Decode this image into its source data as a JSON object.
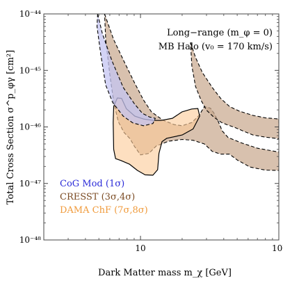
{
  "chart_data": {
    "type": "area",
    "xlabel": "Dark Matter mass   m_χ  [GeV]",
    "ylabel": "Total Cross Section   σ^p_φγ [cm²]",
    "x_scale": "log",
    "y_scale": "log",
    "xlim": [
      2,
      100
    ],
    "ylim": [
      1e-48,
      1e-44
    ],
    "x_ticks": [
      {
        "value": 10,
        "label": "10"
      },
      {
        "value": 100,
        "label": "10²"
      }
    ],
    "y_ticks": [
      {
        "value": 1e-48,
        "label": "10⁻⁴⁸"
      },
      {
        "value": 1e-47,
        "label": "10⁻⁴⁷"
      },
      {
        "value": 1e-46,
        "label": "10⁻⁴⁶"
      },
      {
        "value": 1e-45,
        "label": "10⁻⁴⁵"
      },
      {
        "value": 1e-44,
        "label": "10⁻⁴⁴"
      }
    ],
    "annotations": [
      "Long−range (m_φ = 0)",
      "MB Halo (v₀ = 170 km/s)"
    ],
    "legend_placement": "bottom-left",
    "series": [
      {
        "name": "CoG Mod  (1σ)",
        "color": "#5a5ad8",
        "fill": "#c4c4f2",
        "outline": "dashed",
        "regions": [
          [
            [
              4.9,
              1e-44
            ],
            [
              5.3,
              4.5e-45
            ],
            [
              6.2,
              1.5e-45
            ],
            [
              7.5,
              5e-46
            ],
            [
              9.0,
              2.6e-46
            ],
            [
              10.3,
              1.75e-46
            ],
            [
              11.6,
              1.5e-46
            ],
            [
              12.8,
              1.42e-46
            ],
            [
              12.3,
              1.15e-46
            ],
            [
              10.5,
              1.05e-46
            ],
            [
              8.8,
              1.18e-46
            ],
            [
              7.5,
              1.55e-46
            ],
            [
              6.3,
              2.7e-46
            ],
            [
              5.6,
              5.5e-46
            ],
            [
              5.15,
              2e-45
            ],
            [
              4.85,
              6e-45
            ]
          ]
        ]
      },
      {
        "name": "CRESST  (3σ,4σ)",
        "color": "#6e4a2a",
        "fill": "#c9a98f",
        "outline": "dashed",
        "regions": [
          [
            [
              5.5,
              1e-44
            ],
            [
              6.4,
              3.5e-45
            ],
            [
              7.6,
              1.45e-45
            ],
            [
              9.0,
              6.2e-46
            ],
            [
              10.5,
              3e-46
            ],
            [
              12.0,
              1.85e-46
            ],
            [
              14.5,
              1.32e-46
            ],
            [
              17.5,
              1.1e-46
            ],
            [
              20.0,
              1.05e-46
            ],
            [
              23.5,
              1.2e-46
            ],
            [
              26.5,
              1.6e-46
            ],
            [
              29.0,
              2.3e-46
            ],
            [
              32.0,
              2.15e-46
            ],
            [
              34.0,
              1.75e-46
            ],
            [
              36.5,
              1.25e-46
            ],
            [
              39.0,
              8.5e-47
            ],
            [
              43.0,
              6.5e-47
            ],
            [
              54.0,
              5.2e-47
            ],
            [
              70.0,
              4.2e-47
            ],
            [
              100.0,
              3.6e-47
            ],
            [
              100.0,
              1.7e-47
            ],
            [
              80.0,
              1.72e-47
            ],
            [
              62.0,
              1.95e-47
            ],
            [
              50.0,
              2.6e-47
            ],
            [
              44.0,
              3.3e-47
            ],
            [
              38.0,
              3.3e-47
            ],
            [
              33.0,
              3.7e-47
            ],
            [
              29.0,
              5e-47
            ],
            [
              24.0,
              5.8e-47
            ],
            [
              20.0,
              6e-47
            ],
            [
              16.0,
              5.6e-47
            ],
            [
              13.0,
              4.6e-47
            ],
            [
              11.5,
              3.4e-47
            ],
            [
              10.0,
              3.2e-47
            ],
            [
              9.0,
              4.6e-47
            ],
            [
              8.4,
              6.2e-47
            ],
            [
              7.6,
              8e-47
            ],
            [
              6.9,
              1.25e-46
            ],
            [
              6.4,
              2.8e-46
            ],
            [
              6.0,
              8.5e-46
            ],
            [
              5.6,
              3.5e-45
            ]
          ],
          [
            [
              23.0,
              3.1e-45
            ],
            [
              25.0,
              1.7e-45
            ],
            [
              28.0,
              9.2e-46
            ],
            [
              33.0,
              5e-46
            ],
            [
              38.0,
              3.2e-46
            ],
            [
              44.0,
              2.3e-46
            ],
            [
              52.0,
              1.9e-46
            ],
            [
              65.0,
              1.6e-46
            ],
            [
              80.0,
              1.45e-46
            ],
            [
              100.0,
              1.38e-46
            ],
            [
              100.0,
              6.2e-47
            ],
            [
              80.0,
              6.6e-47
            ],
            [
              65.0,
              7.2e-47
            ],
            [
              55.0,
              8.5e-47
            ],
            [
              48.0,
              9.8e-47
            ],
            [
              42.0,
              1.1e-46
            ],
            [
              38.5,
              1.2e-46
            ],
            [
              34.0,
              1.48e-46
            ],
            [
              30.0,
              1.98e-46
            ],
            [
              27.5,
              2.9e-46
            ],
            [
              25.0,
              5.2e-46
            ],
            [
              23.5,
              1.2e-45
            ]
          ]
        ]
      },
      {
        "name": "DAMA ChF  (7σ,8σ)",
        "color": "#e8a050",
        "fill": "#fbcb9a",
        "outline": "solid",
        "regions": [
          [
            [
              6.4,
              2.3e-46
            ],
            [
              6.8,
              3.25e-46
            ],
            [
              7.3,
              3.2e-46
            ],
            [
              7.9,
              2.1e-46
            ],
            [
              9.1,
              1.55e-46
            ],
            [
              10.5,
              1.38e-46
            ],
            [
              12.5,
              1.3e-46
            ],
            [
              14.0,
              1.3e-46
            ],
            [
              17.0,
              1.42e-46
            ],
            [
              20.0,
              1.85e-46
            ],
            [
              23.5,
              2.08e-46
            ],
            [
              26.0,
              2.12e-46
            ],
            [
              26.8,
              1.55e-46
            ],
            [
              24.0,
              9.2e-47
            ],
            [
              20.0,
              7.2e-47
            ],
            [
              15.5,
              6.3e-47
            ],
            [
              14.3,
              5.5e-47
            ],
            [
              13.6,
              3.4e-47
            ],
            [
              13.3,
              1.75e-47
            ],
            [
              12.3,
              1.4e-47
            ],
            [
              10.8,
              1.42e-47
            ],
            [
              9.5,
              1.7e-47
            ],
            [
              8.3,
              2.2e-47
            ],
            [
              7.2,
              2.55e-47
            ],
            [
              6.6,
              2.75e-47
            ],
            [
              6.4,
              4e-47
            ],
            [
              6.35,
              1.2e-46
            ]
          ]
        ]
      }
    ]
  }
}
